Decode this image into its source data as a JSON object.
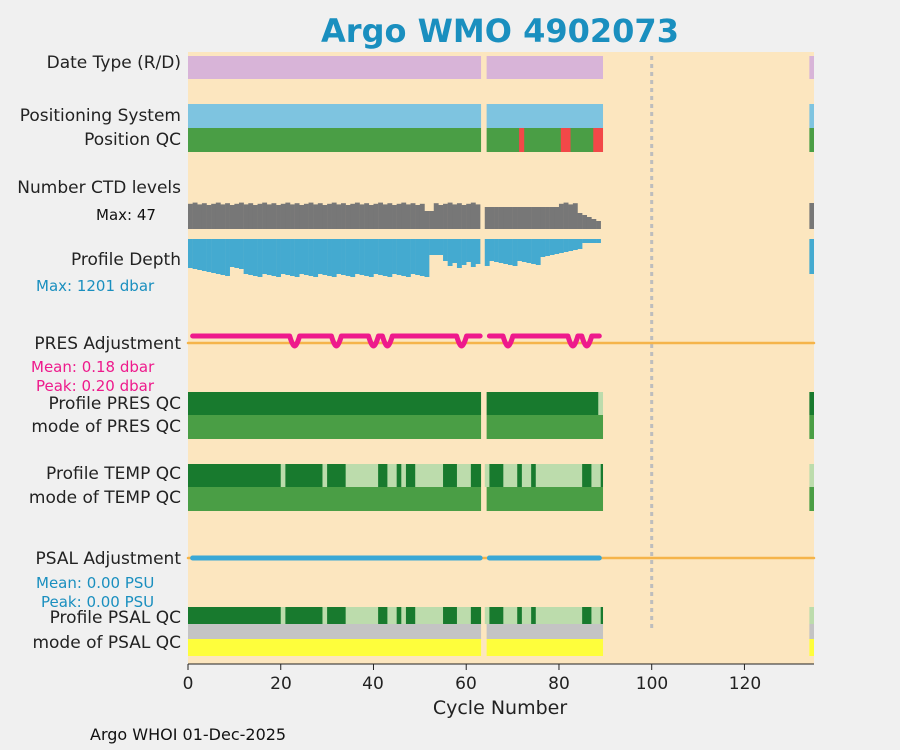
{
  "chart_data": {
    "type": "status-strips",
    "title": "Argo WMO 4902073",
    "xlabel": "Cycle Number",
    "xlim": [
      0,
      135
    ],
    "xticks": [
      "0",
      "20",
      "40",
      "60",
      "80",
      "100",
      "120"
    ],
    "marker_cycle": 100,
    "rows": {
      "date_type": "Date Type (R/D)",
      "positioning": "Positioning System",
      "position_qc": "Position QC",
      "ctd_levels": "Number CTD levels",
      "profile_depth": "Profile Depth",
      "pres_adj": "PRES Adjustment",
      "profile_pres_qc": "Profile PRES QC",
      "mode_pres_qc": "mode of PRES QC",
      "profile_temp_qc": "Profile TEMP QC",
      "mode_temp_qc": "mode of TEMP QC",
      "psal_adj": "PSAL Adjustment",
      "profile_psal_qc": "Profile PSAL QC",
      "mode_psal_qc": "mode of PSAL QC"
    },
    "annotations": {
      "ctd_max": "Max: 47",
      "depth_max": "Max: 1201 dbar",
      "pres_mean": "Mean: 0.18 dbar",
      "pres_peak": "Peak: 0.20 dbar",
      "psal_mean": "Mean: 0.00 PSU",
      "psal_peak": "Peak: 0.00 PSU"
    },
    "cycles": {
      "first_segment": [
        1,
        63
      ],
      "second_segment": [
        65,
        89
      ],
      "last_cycle": 134
    },
    "position_qc_bad_cycles": [
      72,
      81,
      82,
      88,
      89
    ],
    "ctd_levels_max": 47,
    "depth_max_dbar": 1201,
    "pres_adjust_dips": [
      23,
      32,
      40,
      43,
      59,
      69,
      83,
      86
    ],
    "temp_qc_light_segments": [
      [
        20,
        21
      ],
      [
        29,
        30
      ],
      [
        34,
        41
      ],
      [
        43,
        45
      ],
      [
        46,
        47
      ],
      [
        49,
        55
      ],
      [
        58,
        61
      ],
      [
        64,
        65
      ],
      [
        68,
        71
      ],
      [
        72,
        74
      ],
      [
        75,
        85
      ],
      [
        87,
        89
      ]
    ]
  },
  "colors": {
    "background": "#fce6bf",
    "date_type": "#d8b4d8",
    "positioning": "#7ec4e0",
    "good_qc": "#4a9e45",
    "dark_qc": "#187a2e",
    "light_qc": "#bcdcac",
    "bad_qc": "#f24848",
    "ctd": "#777777",
    "depth": "#44aad0",
    "pres": "#ee1a8c",
    "psal": "#3aa8d6",
    "zero_line": "#f5b44a",
    "psal_mode": "#fefe3c",
    "grey_qc": "#c4c4c4"
  },
  "footer": "Argo WHOI 01-Dec-2025"
}
